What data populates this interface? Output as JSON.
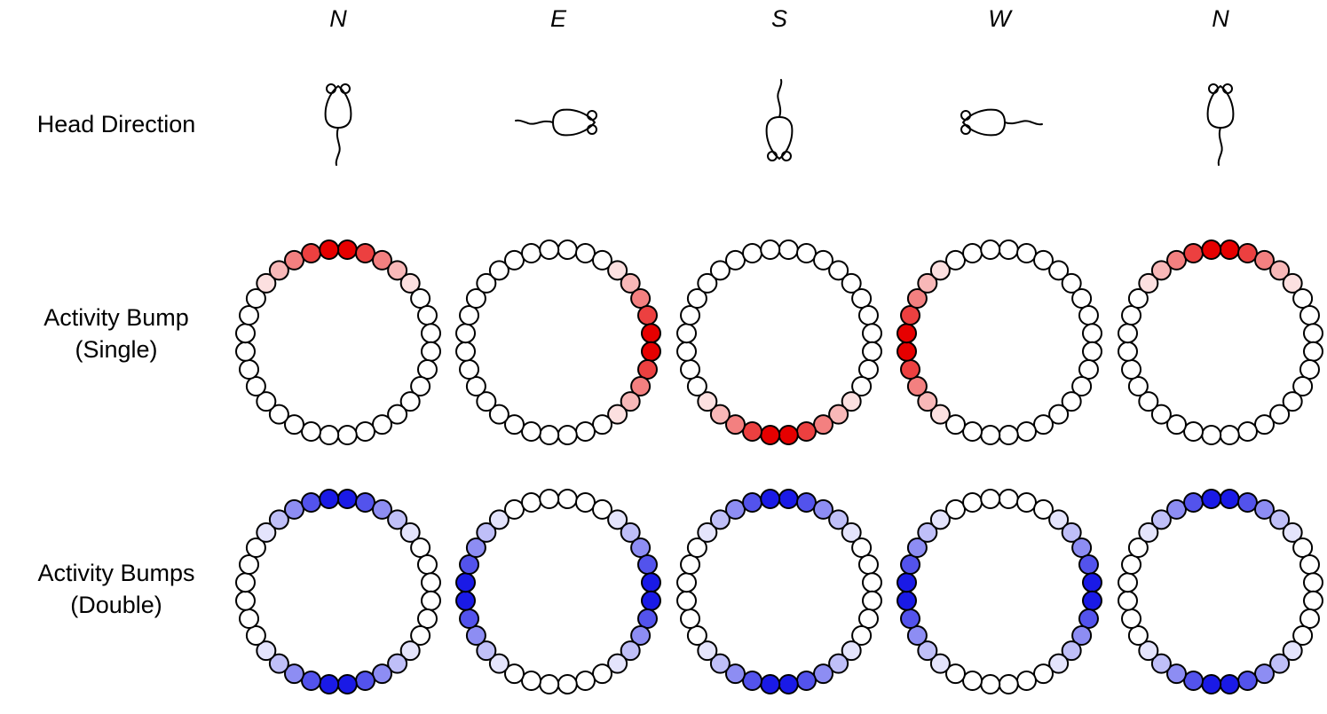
{
  "columns": [
    "N",
    "E",
    "S",
    "W",
    "N"
  ],
  "row_labels": {
    "head_direction": "Head Direction",
    "single_line1": "Activity Bump",
    "single_line2": "(Single)",
    "double_line1": "Activity Bumps",
    "double_line2": "(Double)"
  },
  "neurons_per_ring": 32,
  "colors": {
    "single_peak": "#e60000",
    "double_peak": "#1a1ae6",
    "inactive": "#ffffff",
    "stroke": "#000000"
  },
  "icons": {
    "head_direction": "mouse-icon"
  },
  "headings_deg": [
    0,
    90,
    180,
    270,
    0
  ],
  "bump_profile": [
    1.0,
    0.75,
    0.5,
    0.28,
    0.12
  ]
}
